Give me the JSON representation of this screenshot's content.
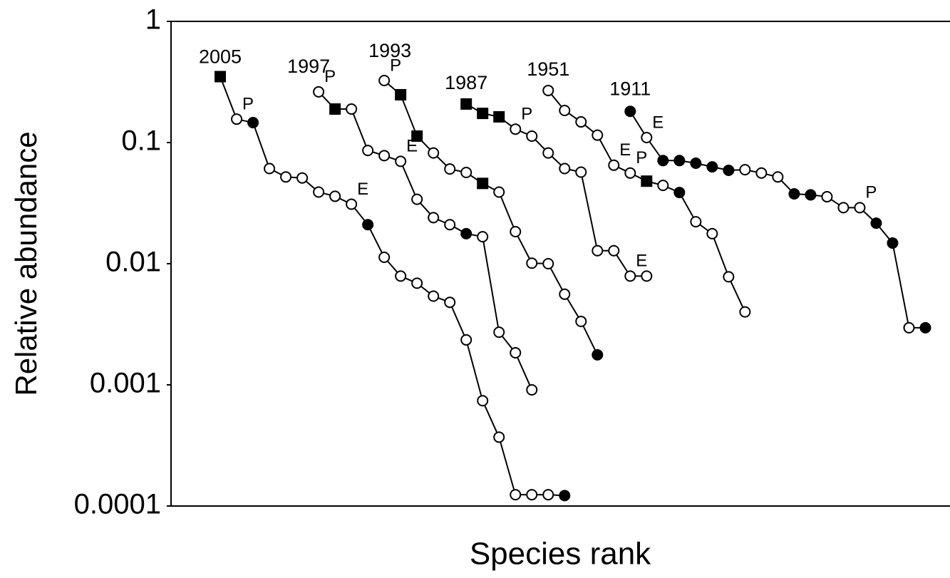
{
  "chart_data": {
    "type": "line",
    "xlabel": "Species rank",
    "ylabel": "Relative abundance",
    "log_y": true,
    "ylim": [
      0.0001,
      1
    ],
    "yticks": [
      1,
      0.1,
      0.01,
      0.001,
      0.0001
    ],
    "xlim": [
      0,
      47.5
    ],
    "color": "#000000",
    "series": [
      {
        "name": "2005",
        "x": [
          3,
          4,
          5,
          6,
          7,
          8,
          9,
          10,
          11,
          12,
          13,
          14,
          15,
          16,
          17,
          18,
          19,
          20,
          21,
          22,
          23,
          24
        ],
        "values": [
          0.35,
          0.156,
          0.146,
          0.061,
          0.052,
          0.051,
          0.039,
          0.036,
          0.031,
          0.021,
          0.0113,
          0.0079,
          0.0069,
          0.0054,
          0.0048,
          0.00235,
          0.00074,
          0.00037,
          0.000124,
          0.000124,
          0.000124,
          0.000122
        ],
        "markers": [
          "square",
          "open",
          "filled",
          "open",
          "open",
          "open",
          "open",
          "open",
          "open",
          "filled",
          "open",
          "open",
          "open",
          "open",
          "open",
          "open",
          "open",
          "open",
          "open",
          "open",
          "open",
          "filled"
        ]
      },
      {
        "name": "1997",
        "x": [
          9,
          10,
          11,
          12,
          13,
          14,
          15,
          16,
          17,
          18,
          19,
          20,
          21,
          22
        ],
        "values": [
          0.262,
          0.189,
          0.189,
          0.086,
          0.078,
          0.07,
          0.034,
          0.024,
          0.021,
          0.0177,
          0.0167,
          0.00272,
          0.00184,
          0.00091
        ],
        "markers": [
          "open",
          "square",
          "open",
          "open",
          "open",
          "open",
          "open",
          "open",
          "open",
          "filled",
          "open",
          "open",
          "open",
          "open"
        ]
      },
      {
        "name": "1993",
        "x": [
          13,
          14,
          15,
          16,
          17,
          18,
          19,
          20,
          21,
          22,
          23,
          24,
          25,
          26
        ],
        "values": [
          0.325,
          0.248,
          0.113,
          0.082,
          0.0605,
          0.0566,
          0.046,
          0.039,
          0.0184,
          0.0101,
          0.01,
          0.0056,
          0.00334,
          0.00177
        ],
        "markers": [
          "open",
          "square",
          "square",
          "open",
          "open",
          "open",
          "square",
          "open",
          "open",
          "open",
          "open",
          "open",
          "open",
          "filled"
        ]
      },
      {
        "name": "1987",
        "x": [
          18,
          19,
          20,
          21,
          22,
          23,
          24,
          25,
          26,
          27,
          28,
          29
        ],
        "values": [
          0.208,
          0.174,
          0.163,
          0.129,
          0.113,
          0.082,
          0.061,
          0.057,
          0.0128,
          0.0128,
          0.0079,
          0.0079
        ],
        "markers": [
          "square",
          "square",
          "square",
          "open",
          "open",
          "open",
          "open",
          "open",
          "open",
          "open",
          "open",
          "open"
        ]
      },
      {
        "name": "1951",
        "x": [
          23,
          24,
          25,
          26,
          27,
          28,
          29,
          30,
          31,
          32,
          33,
          34,
          35
        ],
        "values": [
          0.269,
          0.184,
          0.148,
          0.115,
          0.065,
          0.056,
          0.048,
          0.0443,
          0.0387,
          0.0222,
          0.0177,
          0.0078,
          0.004
        ],
        "markers": [
          "open",
          "open",
          "open",
          "open",
          "open",
          "open",
          "square",
          "open",
          "filled",
          "open",
          "open",
          "open",
          "open"
        ]
      },
      {
        "name": "1911",
        "x": [
          28,
          29,
          30,
          31,
          32,
          33,
          34,
          35,
          36,
          37,
          38,
          39,
          40,
          41,
          42,
          43,
          44,
          45,
          46
        ],
        "values": [
          0.181,
          0.11,
          0.071,
          0.071,
          0.0675,
          0.063,
          0.059,
          0.0597,
          0.056,
          0.052,
          0.0377,
          0.037,
          0.0357,
          0.029,
          0.029,
          0.0216,
          0.0148,
          0.00296,
          0.00296
        ],
        "markers": [
          "filled",
          "open",
          "filled",
          "filled",
          "filled",
          "filled",
          "filled",
          "open",
          "open",
          "open",
          "filled",
          "filled",
          "open",
          "open",
          "open",
          "filled",
          "filled",
          "open",
          "filled"
        ]
      }
    ],
    "annotations": [
      {
        "text": "P",
        "series": 0,
        "index": 1
      },
      {
        "text": "E",
        "series": 0,
        "index": 8
      },
      {
        "text": "P",
        "series": 1,
        "index": 0
      },
      {
        "text": "E",
        "series": 1,
        "index": 5
      },
      {
        "text": "P",
        "series": 2,
        "index": 0
      },
      {
        "text": "P",
        "series": 3,
        "index": 3
      },
      {
        "text": "E",
        "series": 3,
        "index": 10
      },
      {
        "text": "E",
        "series": 4,
        "index": 4
      },
      {
        "text": "P",
        "series": 4,
        "index": 5
      },
      {
        "text": "E",
        "series": 5,
        "index": 1
      },
      {
        "text": "P",
        "series": 5,
        "index": 14
      }
    ]
  }
}
